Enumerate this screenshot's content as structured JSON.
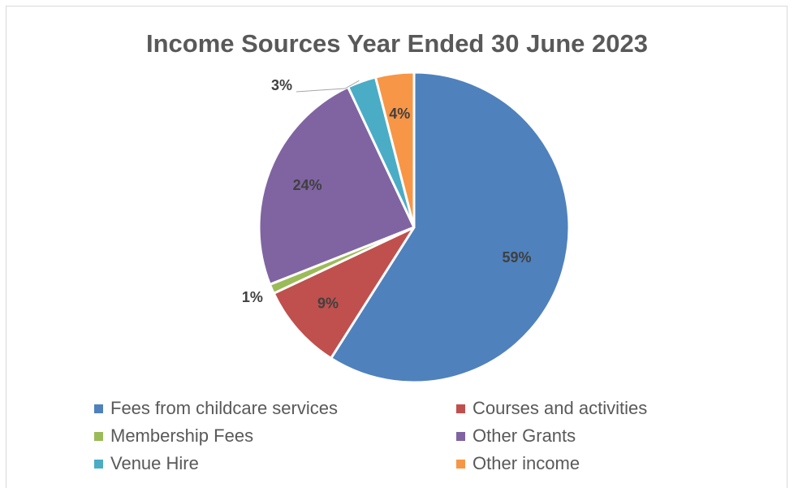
{
  "chart_data": {
    "type": "pie",
    "title": "Income Sources Year Ended 30 June 2023",
    "slices": [
      {
        "name": "Fees from childcare services",
        "value": 59,
        "label": "59%",
        "color": "#4f81bd"
      },
      {
        "name": "Courses and activities",
        "value": 9,
        "label": "9%",
        "color": "#c0504d"
      },
      {
        "name": "Membership Fees",
        "value": 1,
        "label": "1%",
        "color": "#9bbb59"
      },
      {
        "name": "Other Grants",
        "value": 24,
        "label": "24%",
        "color": "#8064a2"
      },
      {
        "name": "Venue Hire",
        "value": 3,
        "label": "3%",
        "color": "#4bacc6"
      },
      {
        "name": "Other income",
        "value": 4,
        "label": "4%",
        "color": "#f79646"
      }
    ],
    "legend_placement": "bottom",
    "start_angle": "12 o'clock",
    "direction": "clockwise"
  }
}
